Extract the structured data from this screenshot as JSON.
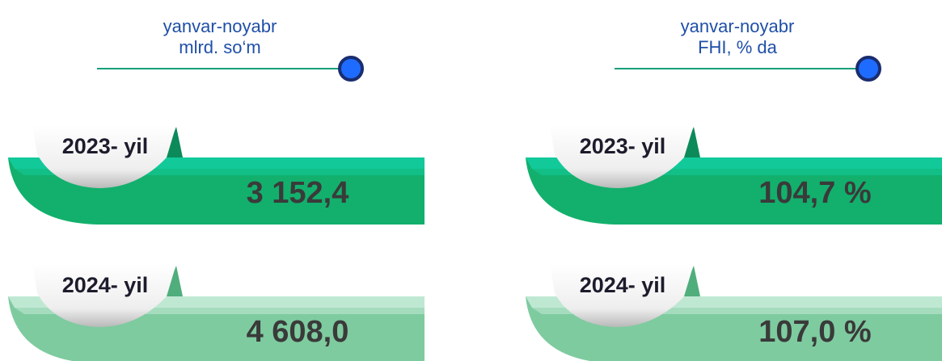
{
  "panels": [
    {
      "header": [
        "yanvar-noyabr",
        "mlrd. so‘m"
      ],
      "rows": [
        {
          "year": "2023- yil",
          "value": "3 152,4"
        },
        {
          "year": "2024- yil",
          "value": "4 608,0"
        }
      ]
    },
    {
      "header": [
        "yanvar-noyabr",
        "FHI, % da"
      ],
      "rows": [
        {
          "year": "2023- yil",
          "value": "104,7 %"
        },
        {
          "year": "2024- yil",
          "value": "107,0 %"
        }
      ]
    }
  ]
}
